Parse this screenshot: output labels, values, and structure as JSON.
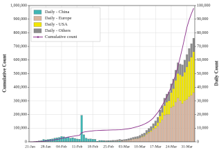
{
  "chart_data": {
    "type": "bar",
    "ylabel": "Cumulative Count",
    "y2label": "Daily Count",
    "categories": [
      "21-Jan",
      null,
      null,
      null,
      null,
      null,
      null,
      "28-Jan",
      null,
      null,
      null,
      null,
      null,
      null,
      "04-Feb",
      null,
      null,
      null,
      null,
      null,
      null,
      "11-Feb",
      null,
      null,
      null,
      null,
      null,
      null,
      "18-Feb",
      null,
      null,
      null,
      null,
      null,
      null,
      "25-Feb",
      null,
      null,
      null,
      null,
      null,
      null,
      "03-Mar",
      null,
      null,
      null,
      null,
      null,
      null,
      "10-Mar",
      null,
      null,
      null,
      null,
      null,
      null,
      "17-Mar",
      null,
      null,
      null,
      null,
      null,
      null,
      "24-Mar",
      null,
      null,
      null,
      null,
      null,
      null,
      "31-Mar",
      null,
      null,
      null
    ],
    "series": [
      {
        "name": "Daily - China",
        "color": "#3fb6b4",
        "axis": "y2",
        "values": [
          150,
          100,
          260,
          450,
          690,
          780,
          1770,
          1460,
          1740,
          1980,
          2100,
          2590,
          2830,
          3240,
          3890,
          3700,
          3150,
          3400,
          2660,
          3000,
          2480,
          2020,
          1820,
          19400,
          5090,
          2640,
          2010,
          2050,
          1890,
          1750,
          390,
          890,
          820,
          650,
          410,
          510,
          410,
          440,
          330,
          430,
          570,
          200,
          120,
          120,
          140,
          100,
          100,
          40,
          20,
          20,
          30,
          20,
          10,
          20,
          20,
          30,
          20,
          40,
          40,
          90,
          40,
          50,
          80,
          100,
          60,
          70,
          60,
          110,
          40,
          30,
          50,
          40,
          50,
          60
        ]
      },
      {
        "name": "Daily - Europe",
        "color": "#d9b59f",
        "axis": "y2",
        "values": [
          0,
          0,
          0,
          0,
          3,
          0,
          0,
          1,
          2,
          2,
          1,
          2,
          1,
          1,
          0,
          1,
          1,
          0,
          3,
          0,
          2,
          0,
          0,
          2,
          1,
          2,
          0,
          0,
          0,
          0,
          2,
          2,
          20,
          80,
          130,
          100,
          120,
          250,
          300,
          400,
          500,
          450,
          700,
          800,
          1000,
          1400,
          1800,
          2100,
          2300,
          2800,
          3500,
          4000,
          5500,
          6500,
          7500,
          9000,
          10000,
          11500,
          14000,
          16000,
          19500,
          20000,
          20000,
          25000,
          26000,
          29000,
          32000,
          30000,
          28000,
          30000,
          31000,
          33000,
          34000,
          36000
        ]
      },
      {
        "name": "Daily - USA",
        "color": "#f2e600",
        "axis": "y2",
        "values": [
          1,
          0,
          0,
          1,
          0,
          2,
          0,
          0,
          0,
          1,
          0,
          2,
          1,
          0,
          0,
          0,
          0,
          0,
          0,
          2,
          0,
          0,
          1,
          1,
          0,
          0,
          0,
          0,
          0,
          0,
          0,
          0,
          0,
          0,
          0,
          0,
          14,
          0,
          0,
          3,
          10,
          20,
          20,
          30,
          60,
          70,
          100,
          120,
          150,
          200,
          290,
          350,
          500,
          600,
          700,
          1000,
          1800,
          2500,
          4800,
          5500,
          7000,
          9000,
          10000,
          11000,
          13000,
          16000,
          18000,
          19000,
          20000,
          21000,
          24000,
          26000,
          28000,
          30000
        ]
      },
      {
        "name": "Daily - Others",
        "color": "#8c8c8c",
        "axis": "y2",
        "values": [
          2,
          3,
          4,
          5,
          6,
          8,
          10,
          12,
          15,
          10,
          20,
          15,
          18,
          20,
          22,
          25,
          30,
          35,
          30,
          40,
          40,
          45,
          50,
          60,
          55,
          70,
          60,
          70,
          80,
          90,
          100,
          150,
          200,
          250,
          300,
          350,
          400,
          450,
          500,
          600,
          700,
          800,
          900,
          1000,
          1100,
          1200,
          1300,
          1400,
          1500,
          1700,
          1900,
          2100,
          2400,
          2700,
          3000,
          3300,
          3600,
          4000,
          4500,
          5000,
          5500,
          6000,
          6500,
          6500,
          7000,
          7500,
          8000,
          8000,
          8500,
          9000,
          9000,
          9500,
          10000,
          10000
        ]
      },
      {
        "name": "Cumulative count",
        "color": "#8b2f8b",
        "type": "line",
        "values": [
          440,
          570,
          830,
          1290,
          2020,
          2800,
          4580,
          6060,
          7820,
          9830,
          11950,
          14550,
          17390,
          20630,
          24550,
          28270,
          31480,
          34890,
          37560,
          40560,
          43100,
          45170,
          47010,
          66500,
          71700,
          74400,
          76450,
          78500,
          80400,
          82200,
          82600,
          83500,
          84350,
          85050,
          85500,
          86050,
          86500,
          87000,
          87400,
          87900,
          88500,
          89800,
          91500,
          93500,
          96000,
          99000,
          103000,
          107500,
          112000,
          117000,
          123000,
          130000,
          138000,
          148000,
          160000,
          175000,
          195000,
          215000,
          240000,
          268000,
          298000,
          330000,
          365000,
          405000,
          445000,
          495000,
          555000,
          620000,
          690000,
          765000,
          840000,
          895000,
          940000,
          980000
        ]
      }
    ],
    "ylim": [
      0,
      1000000
    ],
    "yticks": [
      0,
      {
        "value": 100000,
        "label": "100,000"
      },
      {
        "value": 200000,
        "label": "200,000"
      },
      {
        "value": 300000,
        "label": "300,000"
      },
      {
        "value": 400000,
        "label": "400,000"
      },
      {
        "value": 500000,
        "label": "500,000"
      },
      {
        "value": 600000,
        "label": "600,000"
      },
      {
        "value": 700000,
        "label": "700,000"
      },
      {
        "value": 800000,
        "label": "800,000"
      },
      {
        "value": 900000,
        "label": "900,000"
      },
      {
        "value": 1000000,
        "label": "1,000,000"
      }
    ],
    "y2lim": [
      0,
      100000
    ],
    "y2ticks": [
      0,
      {
        "value": 10000,
        "label": "10,000"
      },
      {
        "value": 20000,
        "label": "20,000"
      },
      {
        "value": 30000,
        "label": "30,000"
      },
      {
        "value": 40000,
        "label": "40,000"
      },
      {
        "value": 50000,
        "label": "50,000"
      },
      {
        "value": 60000,
        "label": "60,000"
      },
      {
        "value": 70000,
        "label": "70,000"
      },
      {
        "value": 80000,
        "label": "80,000"
      },
      {
        "value": 90000,
        "label": "90,000"
      },
      {
        "value": 100000,
        "label": "100,000"
      }
    ],
    "grid": true,
    "legend": "upper left"
  }
}
